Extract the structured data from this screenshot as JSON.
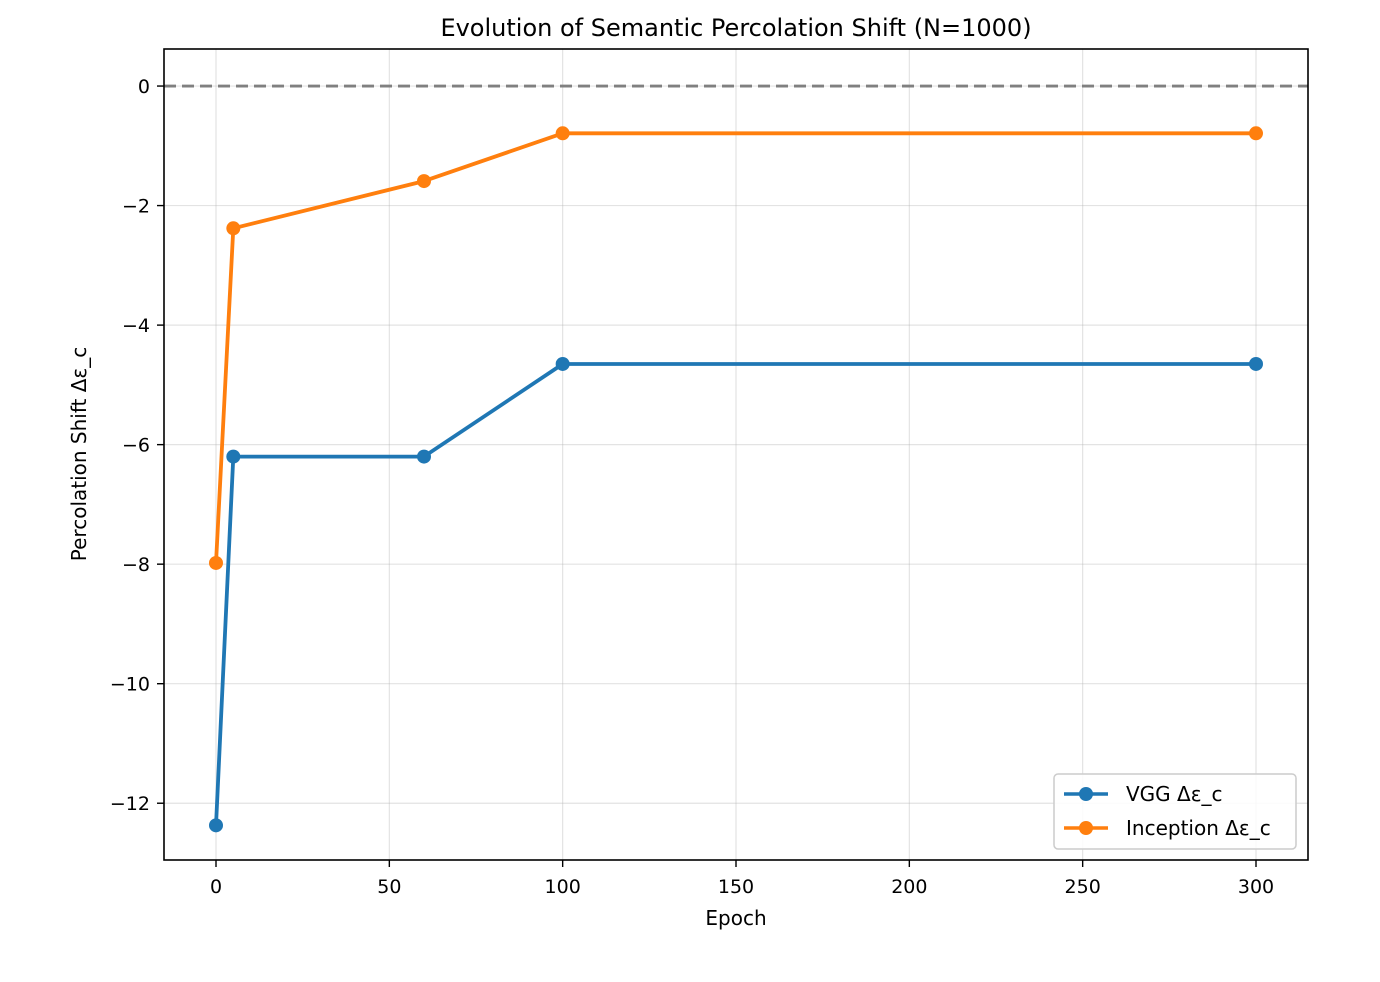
{
  "chart_data": {
    "type": "line",
    "title": "Evolution of Semantic Percolation Shift (N=1000)",
    "xlabel": "Epoch",
    "ylabel": "Percolation Shift Δε_c",
    "xlim": [
      -15,
      315
    ],
    "ylim": [
      -12.95,
      0.62
    ],
    "x_ticks": [
      0,
      50,
      100,
      150,
      200,
      250,
      300
    ],
    "x_tick_labels": [
      "0",
      "50",
      "100",
      "150",
      "200",
      "250",
      "300"
    ],
    "y_ticks": [
      0,
      -2,
      -4,
      -6,
      -8,
      -10,
      -12
    ],
    "y_tick_labels": [
      "0",
      "−2",
      "−4",
      "−6",
      "−8",
      "−10",
      "−12"
    ],
    "grid": true,
    "reference_line": {
      "y": 0,
      "style": "dashed",
      "color": "#808080"
    },
    "legend_position": "lower-right",
    "series": [
      {
        "name": "VGG Δε_c",
        "color": "#1f77b4",
        "x": [
          0,
          5,
          60,
          100,
          300
        ],
        "values": [
          -12.37,
          -6.2,
          -6.2,
          -4.65,
          -4.65
        ]
      },
      {
        "name": "Inception Δε_c",
        "color": "#ff7f0e",
        "x": [
          0,
          5,
          60,
          100,
          300
        ],
        "values": [
          -7.98,
          -2.38,
          -1.59,
          -0.79,
          -0.79
        ]
      }
    ]
  }
}
